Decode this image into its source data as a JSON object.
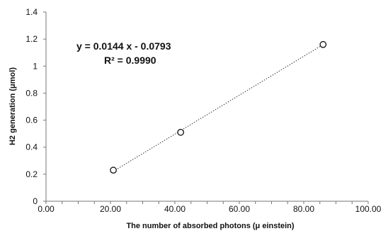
{
  "chart_data": {
    "type": "scatter",
    "xlabel": "The number of absorbed photons (μ einstein)",
    "ylabel": "H2 generation (μmol)",
    "xlim": [
      0,
      100
    ],
    "ylim": [
      0,
      1.4
    ],
    "x_ticks": [
      "0.00",
      "20.00",
      "40.00",
      "60.00",
      "80.00",
      "100.00"
    ],
    "x_tick_values": [
      0,
      20,
      40,
      60,
      80,
      100
    ],
    "x_minor_step": 5,
    "y_ticks": [
      "0",
      "0.2",
      "0.4",
      "0.6",
      "0.8",
      "1",
      "1.2",
      "1.4"
    ],
    "y_tick_values": [
      0,
      0.2,
      0.4,
      0.6,
      0.8,
      1.0,
      1.2,
      1.4
    ],
    "grid": false,
    "legend": "none",
    "series": [
      {
        "x": [
          20.9,
          41.8,
          86.0
        ],
        "y": [
          0.23,
          0.51,
          1.16
        ],
        "marker": "open-circle",
        "color": "#111111"
      }
    ],
    "trendline": {
      "type": "linear",
      "slope": 0.0144,
      "intercept": -0.0793,
      "x_range": [
        20.9,
        86.0
      ],
      "style": "dotted",
      "color": "#333333"
    },
    "annotations": [
      {
        "text": "y = 0.0144 x - 0.0793"
      },
      {
        "text": "R² = 0.9990"
      }
    ]
  }
}
